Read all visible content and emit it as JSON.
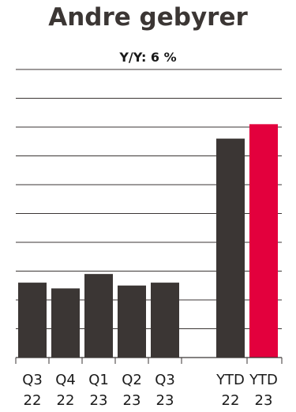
{
  "chart_data": {
    "type": "bar",
    "title": "Andre gebyrer",
    "subtitle": "Y/Y: 6 %",
    "categories": [
      [
        "Q3",
        "22"
      ],
      [
        "Q4",
        "22"
      ],
      [
        "Q1",
        "23"
      ],
      [
        "Q2",
        "23"
      ],
      [
        "Q3",
        "23"
      ],
      [
        "YTD",
        "22"
      ],
      [
        "YTD",
        "23"
      ]
    ],
    "values": [
      26,
      24,
      29,
      25,
      26,
      76,
      81
    ],
    "ylim": [
      0,
      100
    ],
    "grid": true,
    "colors": [
      "#3b3634",
      "#3b3634",
      "#3b3634",
      "#3b3634",
      "#3b3634",
      "#3b3634",
      "#e3003d"
    ]
  }
}
